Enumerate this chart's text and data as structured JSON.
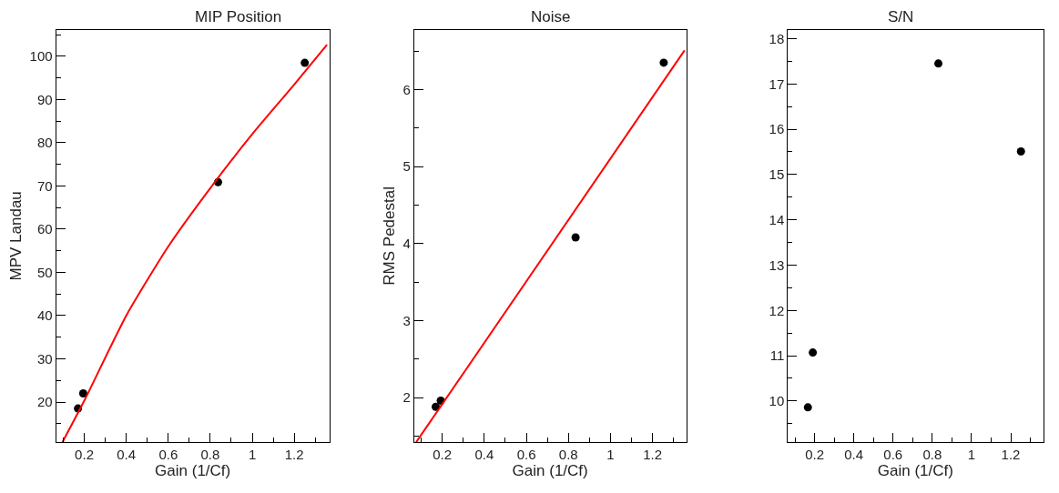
{
  "chart_data": [
    {
      "type": "scatter",
      "title": "MIP Position",
      "xlabel": "Gain (1/Cf)",
      "ylabel": "MPV Landau",
      "x": [
        0.17,
        0.195,
        0.837,
        1.25
      ],
      "series": [
        {
          "color": "#000000",
          "marker": "circle",
          "values": [
            18.5,
            22.0,
            70.9,
            98.5
          ]
        },
        {
          "type": "line",
          "marker": "none",
          "color": "#ff0000",
          "x": [
            0.096,
            0.2,
            0.4,
            0.6,
            0.8,
            1.0,
            1.2,
            1.356
          ],
          "values": [
            10.7,
            20.3,
            40.0,
            56.0,
            69.5,
            82.0,
            93.5,
            102.7
          ]
        }
      ],
      "xlim": [
        0.066,
        1.367
      ],
      "xticks": [
        0.2,
        0.4,
        0.6,
        0.8,
        1,
        1.2
      ],
      "ylim": [
        10.7,
        106.2
      ],
      "yticks": [
        20,
        30,
        40,
        50,
        60,
        70,
        80,
        90,
        100
      ]
    },
    {
      "type": "scatter",
      "title": "Noise",
      "xlabel": "Gain (1/Cf)",
      "ylabel": "RMS Pedestal",
      "x": [
        0.169,
        0.193,
        0.834,
        1.253
      ],
      "series": [
        {
          "color": "#000000",
          "marker": "circle",
          "values": [
            1.88,
            1.96,
            4.08,
            6.35
          ]
        },
        {
          "type": "line",
          "marker": "none",
          "color": "#ff0000",
          "x": [
            0.076,
            1.352
          ],
          "values": [
            1.42,
            6.51
          ]
        }
      ],
      "xlim": [
        0.066,
        1.36
      ],
      "xticks": [
        0.2,
        0.4,
        0.6,
        0.8,
        1,
        1.2
      ],
      "ylim": [
        1.42,
        6.78
      ],
      "yticks": [
        2,
        3,
        4,
        5,
        6
      ]
    },
    {
      "type": "scatter",
      "title": "S/N",
      "xlabel": "Gain (1/Cf)",
      "x": [
        0.166,
        0.191,
        0.831,
        1.252
      ],
      "marker": "circle",
      "series": [
        {
          "color": "#000000",
          "values": [
            9.86,
            11.07,
            17.45,
            15.51
          ]
        }
      ],
      "xlim": [
        0.064,
        1.365
      ],
      "xticks": [
        0.2,
        0.4,
        0.6,
        0.8,
        1,
        1.2
      ],
      "ylim": [
        9.09,
        18.2
      ],
      "yticks": [
        10,
        11,
        12,
        13,
        14,
        15,
        16,
        17,
        18
      ]
    }
  ]
}
